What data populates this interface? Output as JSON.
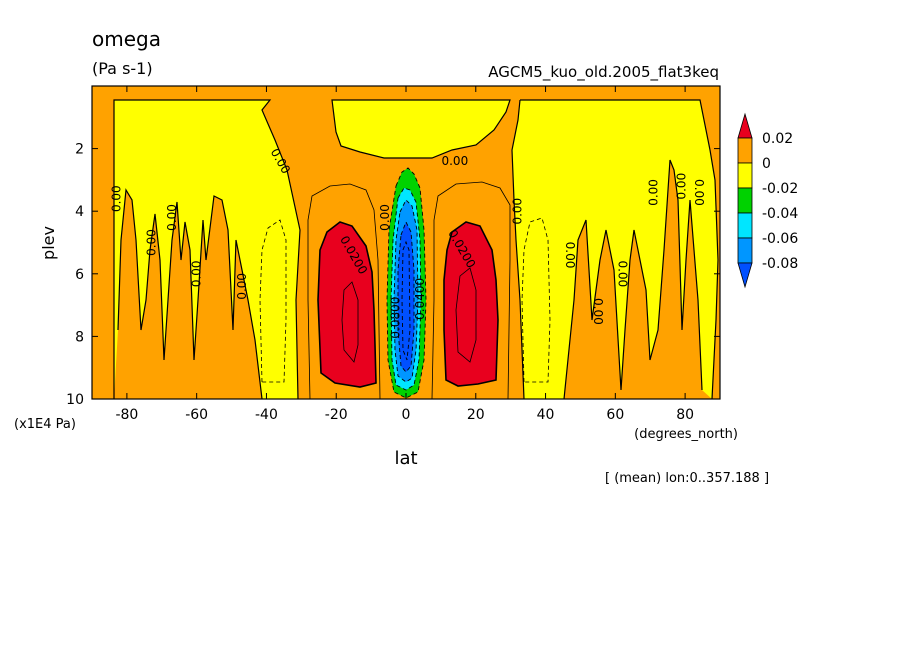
{
  "chart_data": {
    "type": "heatmap",
    "subtype": "filled contour (latitude-pressure cross section)",
    "title": "omega",
    "units": "(Pa s-1)",
    "run_label": "AGCM5_kuo_old.2005_flat3keq",
    "xlabel": "lat",
    "x_units_label": "(degrees_north)",
    "ylabel": "plev",
    "y_units_label": "(x1E4 Pa)",
    "footer": "[ (mean) lon:0..357.188 ]",
    "xlim": [
      -90,
      90
    ],
    "ylim_top_to_bottom": [
      0,
      10
    ],
    "x_ticks": [
      -80,
      -60,
      -40,
      -20,
      0,
      20,
      40,
      60,
      80
    ],
    "y_ticks": [
      2,
      4,
      6,
      8,
      10
    ],
    "colorbar": {
      "levels": [
        "0.02",
        "0",
        "-0.02",
        "-0.04",
        "-0.06",
        "-0.08"
      ],
      "colors": [
        "#e8001e",
        "#ffa200",
        "#ffff00",
        "#00d200",
        "#00e6ff",
        "#0096ff",
        "#0050ff"
      ]
    },
    "contour_labels": [
      {
        "text": "0.00",
        "lat": -83,
        "plev": 3.6,
        "rot": -90
      },
      {
        "text": "0.00",
        "lat": -73,
        "plev": 5.0,
        "rot": -90
      },
      {
        "text": "0.00",
        "lat": -67,
        "plev": 4.2,
        "rot": -90
      },
      {
        "text": "0.00",
        "lat": -60,
        "plev": 6.0,
        "rot": -90
      },
      {
        "text": "0.00",
        "lat": -47,
        "plev": 6.4,
        "rot": -90
      },
      {
        "text": "0.00",
        "lat": -36,
        "plev": 2.4,
        "rot": 60
      },
      {
        "text": "0.0200",
        "lat": -15,
        "plev": 5.4,
        "rot": 60
      },
      {
        "text": "0.00",
        "lat": -6,
        "plev": 4.2,
        "rot": -90
      },
      {
        "text": "0.0800",
        "lat": -3,
        "plev": 7.4,
        "rot": -90
      },
      {
        "text": "0.0400",
        "lat": 4,
        "plev": 6.8,
        "rot": -90
      },
      {
        "text": "0.0200",
        "lat": 16,
        "plev": 5.2,
        "rot": 60
      },
      {
        "text": "0.00",
        "lat": 14,
        "plev": 2.4,
        "rot": 0
      },
      {
        "text": "0.00",
        "lat": 32,
        "plev": 4.0,
        "rot": -90
      },
      {
        "text": "0.00",
        "lat": 47,
        "plev": 5.4,
        "rot": 90
      },
      {
        "text": "0.00",
        "lat": 55,
        "plev": 7.2,
        "rot": 90
      },
      {
        "text": "0.00",
        "lat": 62,
        "plev": 6.0,
        "rot": 90
      },
      {
        "text": "0.00",
        "lat": 71,
        "plev": 3.4,
        "rot": -90
      },
      {
        "text": "0.00",
        "lat": 79,
        "plev": 3.2,
        "rot": -90
      },
      {
        "text": "0.00",
        "lat": 84,
        "plev": 3.4,
        "rot": 90
      }
    ]
  }
}
